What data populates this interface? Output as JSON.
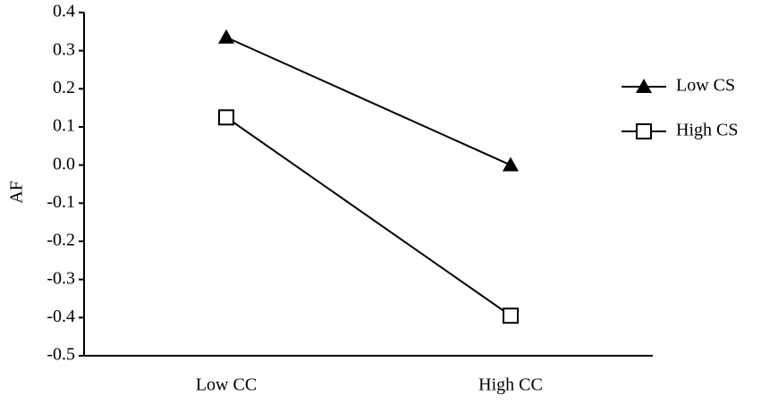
{
  "chart_data": {
    "type": "line",
    "y_label": "AF",
    "categories": [
      "Low CC",
      "High CC"
    ],
    "series": [
      {
        "name": "Low CS",
        "color": "#000000",
        "marker": "triangle",
        "values": [
          0.335,
          0.0
        ]
      },
      {
        "name": "High CS",
        "color": "#000000",
        "marker": "square",
        "values": [
          0.125,
          -0.395
        ]
      }
    ],
    "ylim": [
      -0.5,
      0.4
    ],
    "yticks": [
      0.4,
      0.3,
      0.2,
      0.1,
      {
        "value": 0,
        "label": "0.0"
      },
      -0.1,
      -0.2,
      -0.3,
      -0.4,
      -0.5
    ],
    "legend": "right"
  }
}
